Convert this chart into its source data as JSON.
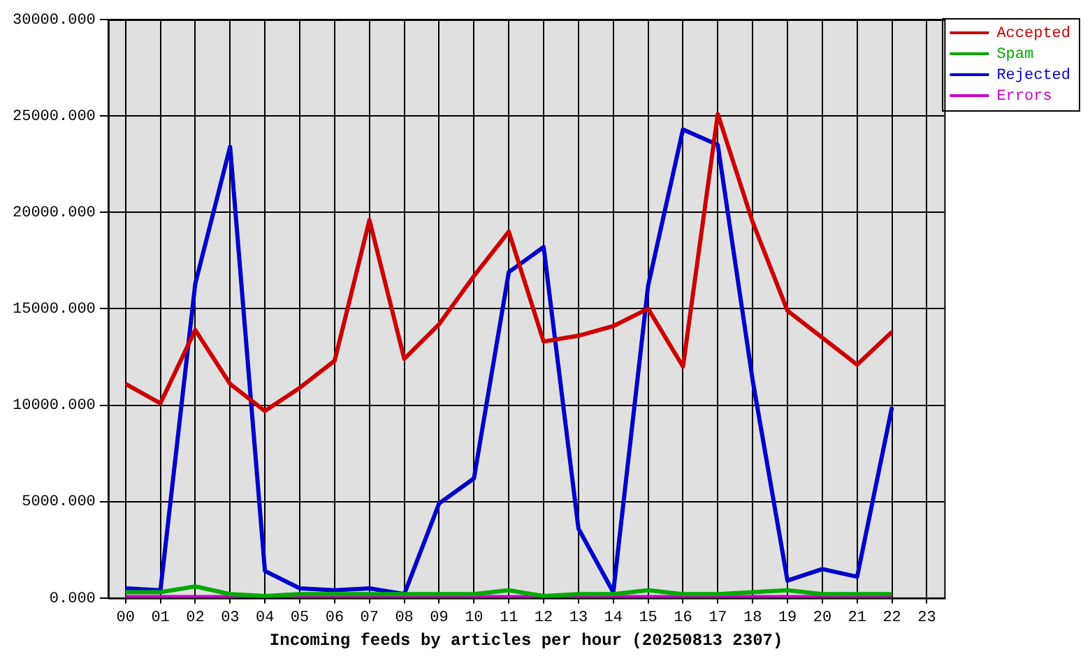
{
  "chart_data": {
    "type": "line",
    "xlabel": "Incoming feeds by articles per hour (20250813 2307)",
    "categories": [
      "00",
      "01",
      "02",
      "03",
      "04",
      "05",
      "06",
      "07",
      "08",
      "09",
      "10",
      "11",
      "12",
      "13",
      "14",
      "15",
      "16",
      "17",
      "18",
      "19",
      "20",
      "21",
      "22",
      "23"
    ],
    "series": [
      {
        "name": "Accepted",
        "color": "#cc0000",
        "values": [
          11100,
          10100,
          13900,
          11100,
          9700,
          10900,
          12300,
          19600,
          12400,
          14200,
          16700,
          19000,
          13300,
          13600,
          14100,
          15000,
          12000,
          25100,
          19500,
          14900,
          13500,
          12100,
          13800,
          null
        ]
      },
      {
        "name": "Spam",
        "color": "#00aa00",
        "values": [
          300,
          300,
          600,
          200,
          100,
          200,
          200,
          200,
          200,
          200,
          200,
          400,
          100,
          200,
          200,
          400,
          200,
          200,
          300,
          400,
          200,
          200,
          200,
          null
        ]
      },
      {
        "name": "Rejected",
        "color": "#0000cc",
        "values": [
          500,
          400,
          16300,
          23400,
          1400,
          500,
          400,
          500,
          200,
          4900,
          6200,
          16900,
          18200,
          3600,
          300,
          16200,
          24300,
          23500,
          11300,
          900,
          1500,
          1100,
          9900,
          null
        ]
      },
      {
        "name": "Errors",
        "color": "#cc00cc",
        "values": [
          50,
          50,
          50,
          50,
          50,
          50,
          50,
          50,
          50,
          50,
          50,
          50,
          50,
          50,
          50,
          50,
          50,
          50,
          50,
          50,
          50,
          50,
          50,
          null
        ]
      }
    ],
    "ylim": [
      0,
      30000
    ],
    "yticks": [
      {
        "value": 0,
        "label": "0.000"
      },
      {
        "value": 5000,
        "label": "5000.000"
      },
      {
        "value": 10000,
        "label": "10000.000"
      },
      {
        "value": 15000,
        "label": "15000.000"
      },
      {
        "value": 20000,
        "label": "20000.000"
      },
      {
        "value": 25000,
        "label": "25000.000"
      },
      {
        "value": 30000,
        "label": "30000.000"
      }
    ],
    "grid": true,
    "legend": "top right",
    "marker": "none",
    "line_style": "solid"
  }
}
